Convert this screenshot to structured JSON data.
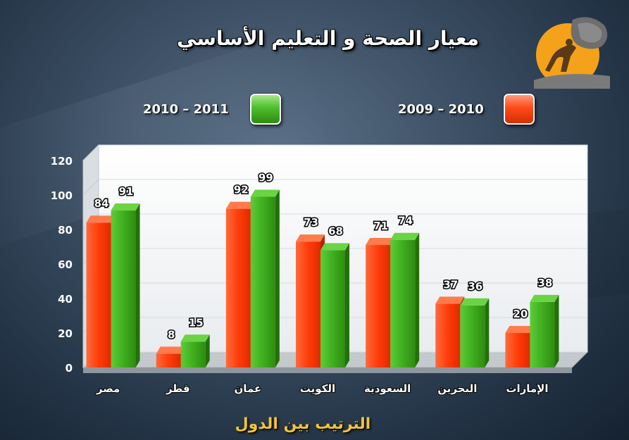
{
  "title": "معيار الصحة و التعليم الأساسي",
  "logo_icon": "sisyphus-logo-icon",
  "colors": {
    "series_2009_2010": "#ff3c0a",
    "series_2010_2011": "#3fae1f",
    "axis_title": "#f4c430"
  },
  "chart_data": {
    "type": "bar",
    "title": "معيار الصحة و التعليم الأساسي",
    "xlabel": "الترتيب بين الدول",
    "ylabel": "",
    "ylim": [
      0,
      120
    ],
    "yticks": [
      0,
      20,
      40,
      60,
      80,
      100,
      120
    ],
    "grid": true,
    "legend_placement": "top",
    "categories": [
      "مصر",
      "قطر",
      "عمان",
      "الكويت",
      "السعودية",
      "البحرين",
      "الإمارات"
    ],
    "series": [
      {
        "name": "2009 – 2010",
        "color": "#ff3c0a",
        "values": [
          84,
          8,
          92,
          73,
          71,
          37,
          20
        ]
      },
      {
        "name": "2010 – 2011",
        "color": "#3fae1f",
        "values": [
          91,
          15,
          99,
          68,
          74,
          36,
          38
        ]
      }
    ]
  }
}
